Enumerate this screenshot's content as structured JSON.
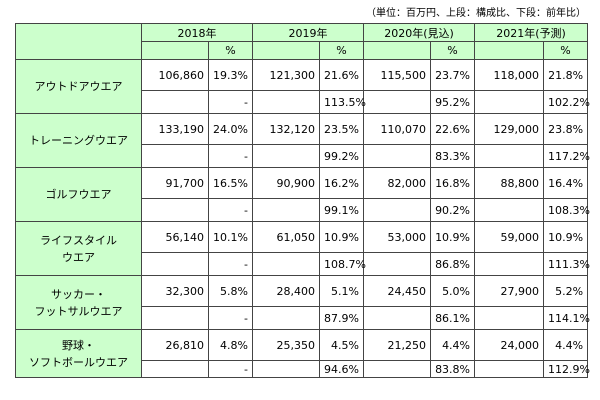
{
  "note": "（単位：百万円、上段：構成比、下段：前年比）",
  "years": [
    "2018年",
    "2019年",
    "2020年(見込)",
    "2021年(予測)"
  ],
  "pct_label": "%",
  "rows": [
    {
      "label_lines": [
        "アウトドアウエア"
      ],
      "values": [
        "106,860",
        "121,300",
        "115,500",
        "118,000"
      ],
      "shares": [
        "19.3%",
        "21.6%",
        "23.7%",
        "21.8%"
      ],
      "yoy": [
        "-",
        "113.5%",
        "95.2%",
        "102.2%"
      ]
    },
    {
      "label_lines": [
        "トレーニングウエア"
      ],
      "values": [
        "133,190",
        "132,120",
        "110,070",
        "129,000"
      ],
      "shares": [
        "24.0%",
        "23.5%",
        "22.6%",
        "23.8%"
      ],
      "yoy": [
        "-",
        "99.2%",
        "83.3%",
        "117.2%"
      ]
    },
    {
      "label_lines": [
        "ゴルフウエア"
      ],
      "values": [
        "91,700",
        "90,900",
        "82,000",
        "88,800"
      ],
      "shares": [
        "16.5%",
        "16.2%",
        "16.8%",
        "16.4%"
      ],
      "yoy": [
        "-",
        "99.1%",
        "90.2%",
        "108.3%"
      ]
    },
    {
      "label_lines": [
        "ライフスタイル",
        "ウエア"
      ],
      "values": [
        "56,140",
        "61,050",
        "53,000",
        "59,000"
      ],
      "shares": [
        "10.1%",
        "10.9%",
        "10.9%",
        "10.9%"
      ],
      "yoy": [
        "-",
        "108.7%",
        "86.8%",
        "111.3%"
      ]
    },
    {
      "label_lines": [
        "サッカー・",
        "フットサルウエア"
      ],
      "values": [
        "32,300",
        "28,400",
        "24,450",
        "27,900"
      ],
      "shares": [
        "5.8%",
        "5.1%",
        "5.0%",
        "5.2%"
      ],
      "yoy": [
        "-",
        "87.9%",
        "86.1%",
        "114.1%"
      ]
    },
    {
      "label_lines": [
        "野球・",
        "ソフトボールウエア"
      ],
      "values": [
        "26,810",
        "25,350",
        "21,250",
        "24,000"
      ],
      "shares": [
        "4.8%",
        "4.5%",
        "4.4%",
        "4.4%"
      ],
      "yoy": [
        "-",
        "94.6%",
        "83.8%",
        "112.9%"
      ]
    }
  ]
}
